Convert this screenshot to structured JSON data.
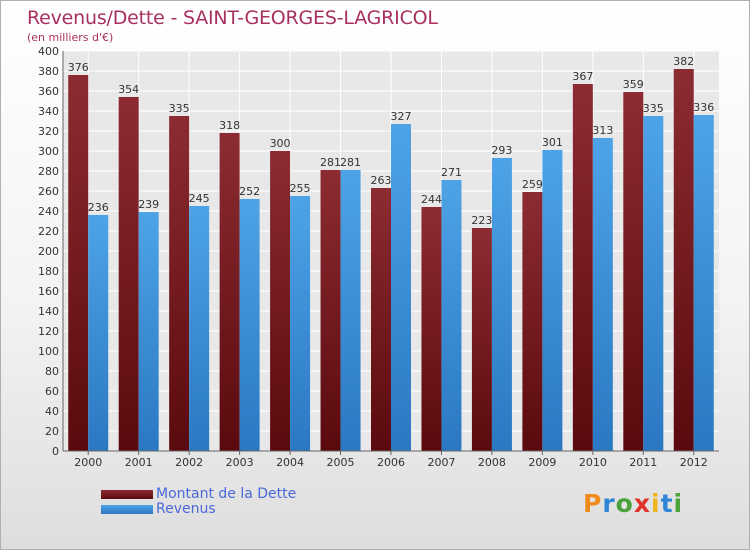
{
  "title": "Revenus/Dette - SAINT-GEORGES-LAGRICOL",
  "subtitle": "(en milliers d'€)",
  "legend": {
    "debt": "Montant de la Dette",
    "revenue": "Revenus"
  },
  "logo": {
    "letters": [
      "P",
      "r",
      "o",
      "x",
      "i",
      "t",
      "i"
    ],
    "colors": [
      "#f08a1c",
      "#2f86d6",
      "#4aa33a",
      "#e0332a",
      "#f0b41c",
      "#2f86d6",
      "#4aa33a"
    ]
  },
  "chart_data": {
    "type": "bar",
    "title": "Revenus/Dette - SAINT-GEORGES-LAGRICOL",
    "ylabel": "(en milliers d'€)",
    "categories": [
      "2000",
      "2001",
      "2002",
      "2003",
      "2004",
      "2005",
      "2006",
      "2007",
      "2008",
      "2009",
      "2010",
      "2011",
      "2012"
    ],
    "series": [
      {
        "name": "Montant de la Dette",
        "color": "#7a1e24",
        "values": [
          376,
          354,
          335,
          318,
          300,
          281,
          263,
          244,
          223,
          259,
          367,
          359,
          382
        ]
      },
      {
        "name": "Revenus",
        "color": "#3b8fd6",
        "values": [
          236,
          239,
          245,
          252,
          255,
          281,
          327,
          271,
          293,
          301,
          313,
          335,
          336
        ]
      }
    ],
    "ylim": [
      0,
      400
    ],
    "ytick_step": 20,
    "grid": true,
    "legend_position": "bottom-left"
  }
}
